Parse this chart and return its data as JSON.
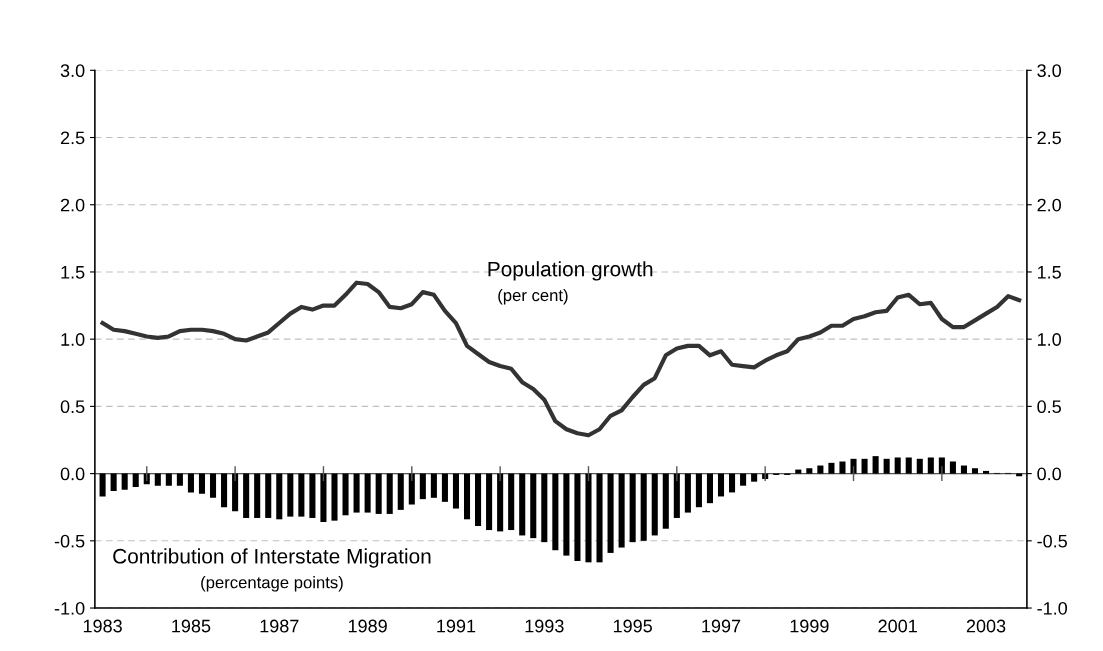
{
  "chart_data": {
    "type": "bar",
    "categories": [
      "1983",
      null,
      null,
      null,
      null,
      null,
      null,
      null,
      "1985",
      null,
      null,
      null,
      null,
      null,
      null,
      null,
      "1987",
      null,
      null,
      null,
      null,
      null,
      null,
      null,
      "1989",
      null,
      null,
      null,
      null,
      null,
      null,
      null,
      "1991",
      null,
      null,
      null,
      null,
      null,
      null,
      null,
      "1993",
      null,
      null,
      null,
      null,
      null,
      null,
      null,
      "1995",
      null,
      null,
      null,
      null,
      null,
      null,
      null,
      "1997",
      null,
      null,
      null,
      null,
      null,
      null,
      null,
      "1999",
      null,
      null,
      null,
      null,
      null,
      null,
      null,
      "2001",
      null,
      null,
      null,
      null,
      null,
      null,
      null,
      "2003",
      null,
      null,
      null
    ],
    "series": [
      {
        "name": "Population growth",
        "type": "line",
        "color": "#333333",
        "values": [
          1.12,
          1.07,
          1.06,
          1.04,
          1.02,
          1.01,
          1.02,
          1.06,
          1.07,
          1.07,
          1.06,
          1.04,
          1.0,
          0.99,
          1.02,
          1.05,
          1.12,
          1.19,
          1.24,
          1.22,
          1.25,
          1.25,
          1.33,
          1.42,
          1.41,
          1.35,
          1.24,
          1.23,
          1.26,
          1.35,
          1.33,
          1.21,
          1.12,
          0.95,
          0.89,
          0.83,
          0.8,
          0.78,
          0.68,
          0.63,
          0.55,
          0.39,
          0.33,
          0.3,
          0.285,
          0.33,
          0.43,
          0.47,
          0.57,
          0.66,
          0.71,
          0.88,
          0.93,
          0.95,
          0.95,
          0.88,
          0.91,
          0.81,
          0.8,
          0.79,
          0.84,
          0.88,
          0.91,
          1.0,
          1.02,
          1.05,
          1.1,
          1.1,
          1.15,
          1.17,
          1.2,
          1.21,
          1.31,
          1.33,
          1.26,
          1.27,
          1.15,
          1.09,
          1.09,
          1.14,
          1.19,
          1.24,
          1.32,
          1.29
        ]
      },
      {
        "name": "Contribution of Interstate Migration",
        "color": "#000000",
        "values": [
          -0.17,
          -0.13,
          -0.12,
          -0.1,
          -0.08,
          -0.09,
          -0.09,
          -0.09,
          -0.14,
          -0.15,
          -0.18,
          -0.25,
          -0.28,
          -0.33,
          -0.33,
          -0.33,
          -0.34,
          -0.32,
          -0.32,
          -0.33,
          -0.36,
          -0.35,
          -0.31,
          -0.29,
          -0.29,
          -0.3,
          -0.3,
          -0.27,
          -0.23,
          -0.19,
          -0.18,
          -0.21,
          -0.26,
          -0.34,
          -0.39,
          -0.42,
          -0.43,
          -0.42,
          -0.46,
          -0.48,
          -0.51,
          -0.57,
          -0.61,
          -0.65,
          -0.66,
          -0.66,
          -0.59,
          -0.55,
          -0.51,
          -0.5,
          -0.46,
          -0.41,
          -0.33,
          -0.29,
          -0.25,
          -0.22,
          -0.17,
          -0.14,
          -0.09,
          -0.06,
          -0.04,
          -0.01,
          -0.01,
          0.03,
          0.04,
          0.06,
          0.08,
          0.09,
          0.11,
          0.11,
          0.13,
          0.11,
          0.12,
          0.12,
          0.11,
          0.12,
          0.12,
          0.09,
          0.06,
          0.04,
          0.02,
          0.005,
          0.005,
          -0.02
        ]
      }
    ],
    "annotations": [
      "(per cent)",
      "(percentage points)"
    ],
    "ylim": [
      -1.0,
      3.0
    ],
    "yticks": [
      {
        "value": -1.0,
        "label": "-1.0"
      },
      {
        "value": -0.5,
        "label": "-0.5"
      },
      {
        "value": 0.0,
        "label": "0.0"
      },
      {
        "value": 0.5,
        "label": "0.5"
      },
      {
        "value": 1.0,
        "label": "1.0"
      },
      {
        "value": 1.5,
        "label": "1.5"
      },
      {
        "value": 2.0,
        "label": "2.0"
      },
      {
        "value": 2.5,
        "label": "2.5"
      },
      {
        "value": 3.0,
        "label": "3.0"
      }
    ],
    "y2lim": [
      -1.0,
      3.0
    ],
    "y2ticks": [
      {
        "value": -1.0,
        "label": "-1.0"
      },
      {
        "value": -0.5,
        "label": "-0.5"
      },
      {
        "value": 0.0,
        "label": "0.0"
      },
      {
        "value": 0.5,
        "label": "0.5"
      },
      {
        "value": 1.0,
        "label": "1.0"
      },
      {
        "value": 1.5,
        "label": "1.5"
      },
      {
        "value": 2.0,
        "label": "2.0"
      },
      {
        "value": 2.5,
        "label": "2.5"
      },
      {
        "value": 3.0,
        "label": "3.0"
      }
    ],
    "grid": "y"
  }
}
